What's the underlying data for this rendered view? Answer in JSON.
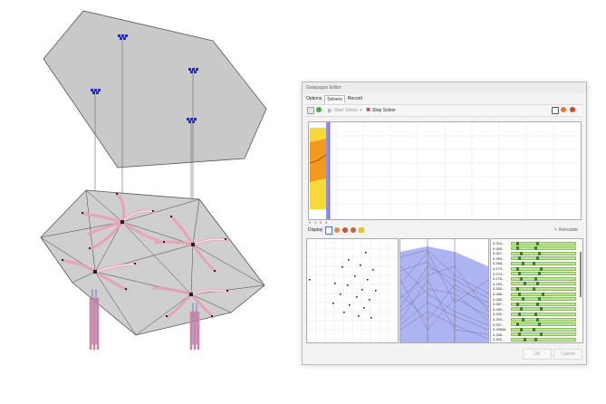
{
  "editor": {
    "title": "Galapagos Editor",
    "tabs": [
      "Options",
      "Solvers",
      "Record"
    ],
    "active_tab": "Solvers",
    "toolbar": {
      "start_label": "Start Solver",
      "stop_label": "Stop Solver"
    },
    "history": {
      "x_ticks": [
        "0",
        "1",
        "2",
        "3"
      ]
    },
    "display_label": "Display",
    "reinstate_label": "Reinstate",
    "genomes": [
      "0.224...",
      "0.265...",
      "0.267...",
      "0.269...",
      "0.268...",
      "0.273...",
      "0.274...",
      "0.276...",
      "0.283...",
      "0.283...",
      "0.286...",
      "0.285...",
      "0.287...",
      "0.289...",
      "0.292...",
      "0.293...",
      "0.297...",
      "0.29838",
      "0.298...",
      "0.300..."
    ],
    "ok_label": "OK",
    "cancel_label": "Cancel",
    "colors": {
      "history_yellow": "#f7d93a",
      "history_orange": "#f29a1e",
      "history_purple": "#8c8ff0",
      "parallel_fill": "#aeb3f2",
      "gene_bar": "#bde29a",
      "gene_mark": "#3f7d22"
    }
  },
  "scene": {
    "colors": {
      "plane_fill": "#c9c9c9",
      "plane_stroke": "#555555",
      "tube_pink": "#e8a0b4",
      "tube_blue": "#6b72c9"
    }
  }
}
